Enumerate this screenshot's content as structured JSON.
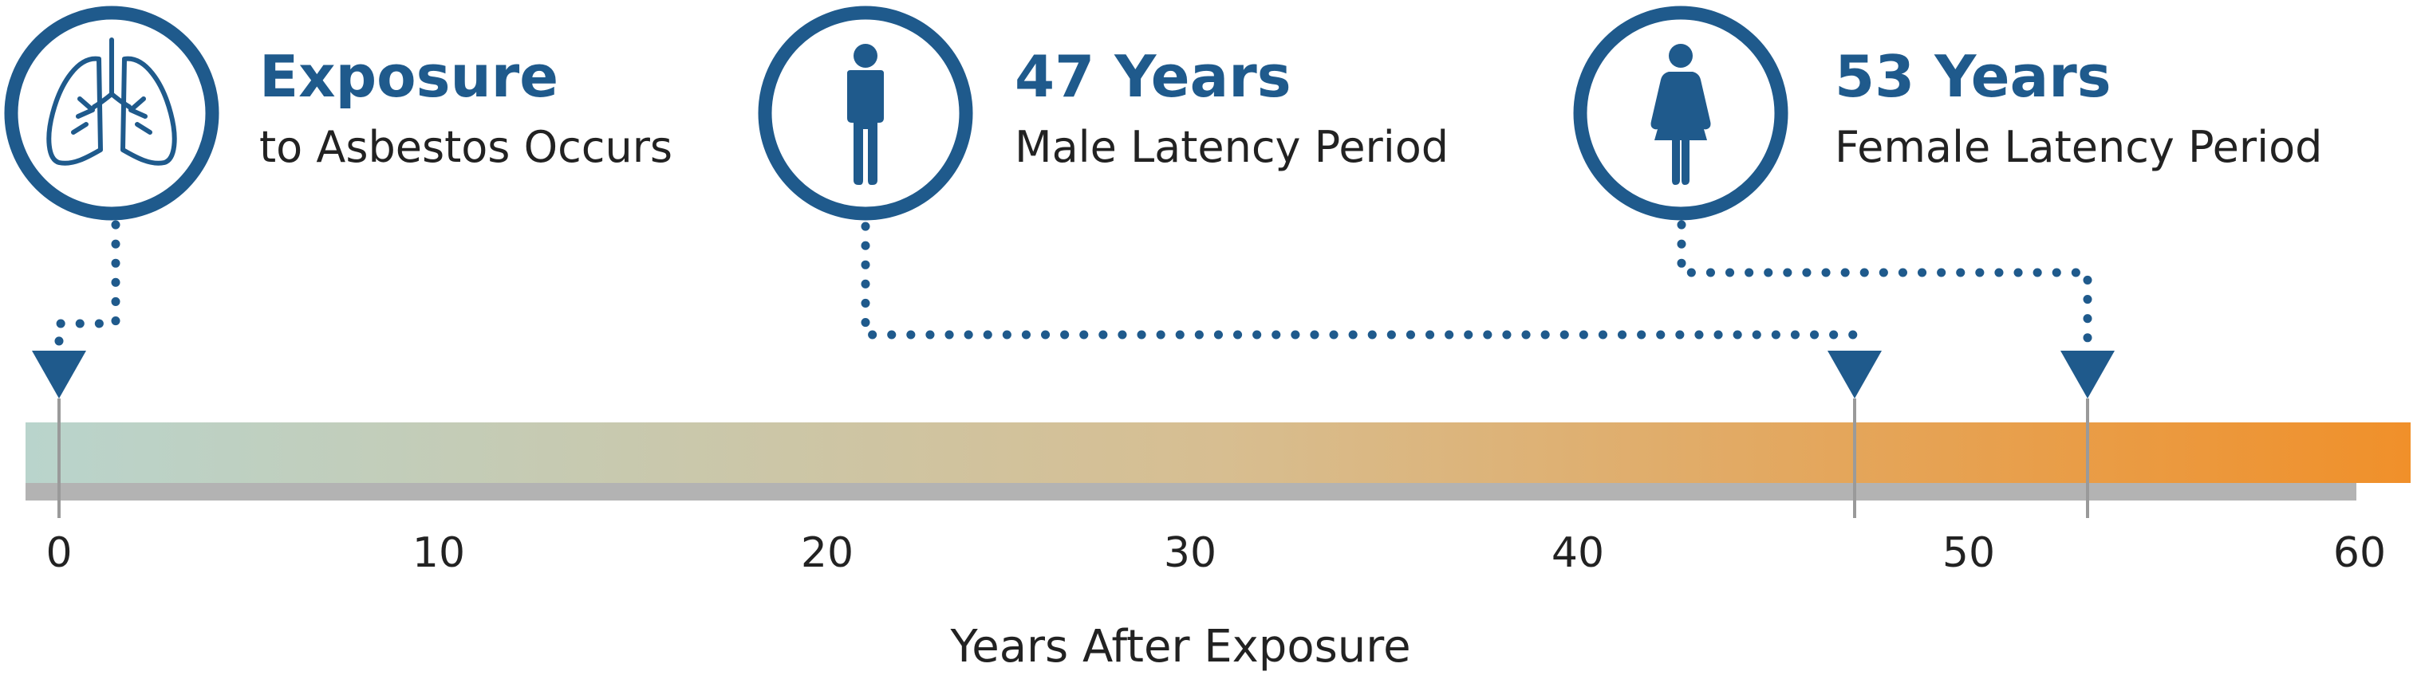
{
  "callouts": {
    "exposure": {
      "headline": "Exposure",
      "caption": "to Asbestos Occurs",
      "year": 0,
      "icon": "lungs-icon"
    },
    "male": {
      "headline": "47 Years",
      "caption": "Male Latency Period",
      "year": 47,
      "icon": "male-person-icon"
    },
    "female": {
      "headline": "53 Years",
      "caption": "Female Latency Period",
      "year": 53,
      "icon": "female-person-icon"
    }
  },
  "timeline": {
    "axis_title": "Years After Exposure",
    "range": [
      0,
      60
    ],
    "ticks": [
      "0",
      "10",
      "20",
      "30",
      "40",
      "50",
      "60"
    ],
    "tick_values": [
      0,
      10,
      20,
      30,
      40,
      50,
      60
    ]
  },
  "colors": {
    "brand_blue": "#1f5a8c",
    "gradient_start": "#b9d4cc",
    "gradient_mid": "#d7be91",
    "gradient_end": "#f0902a",
    "shadow_gray": "#b3b3b3"
  }
}
